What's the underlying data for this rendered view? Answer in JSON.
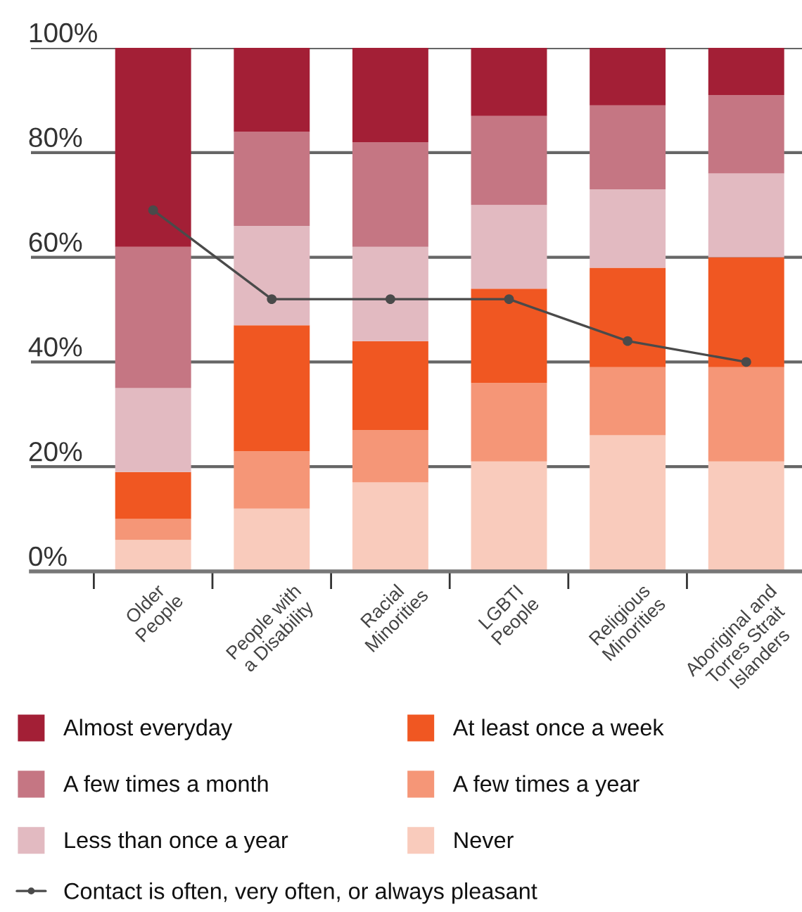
{
  "chart_data": {
    "type": "bar",
    "stacked": true,
    "categories": [
      "Older\nPeople",
      "People with\na Disability",
      "Racial\nMinorities",
      "LGBTI\nPeople",
      "Religious\nMinorities",
      "Aboriginal and\nTorres Strait\nIslanders"
    ],
    "series": [
      {
        "name": "Never",
        "color": "#f9cbbc",
        "values": [
          6,
          12,
          17,
          21,
          26,
          21
        ]
      },
      {
        "name": "A few times a year",
        "color": "#f59677",
        "values": [
          4,
          11,
          10,
          15,
          13,
          18
        ]
      },
      {
        "name": "At least once a week",
        "color": "#f05722",
        "values": [
          9,
          24,
          17,
          18,
          19,
          21
        ]
      },
      {
        "name": "Less than once a year",
        "color": "#e2bac1",
        "values": [
          16,
          19,
          18,
          16,
          15,
          16
        ]
      },
      {
        "name": "A few times a month",
        "color": "#c57683",
        "values": [
          27,
          18,
          20,
          17,
          16,
          15
        ]
      },
      {
        "name": "Almost everyday",
        "color": "#a31f36",
        "values": [
          38,
          16,
          18,
          13,
          11,
          9
        ]
      },
      {
        "name": "Contact is often, very often, or always pleasant",
        "type": "line",
        "color": "#4a4a4a",
        "values": [
          69,
          52,
          52,
          52,
          44,
          40
        ]
      }
    ],
    "ylim": [
      0,
      100
    ],
    "yticks": [
      {
        "value": 0,
        "label": "0%"
      },
      {
        "value": 20,
        "label": "20%"
      },
      {
        "value": 40,
        "label": "40%"
      },
      {
        "value": 60,
        "label": "60%"
      },
      {
        "value": 80,
        "label": "80%"
      },
      {
        "value": 100,
        "label": "100%"
      }
    ],
    "grid": "y",
    "legend": "bottom",
    "marker": "circle",
    "line_style": "solid"
  }
}
